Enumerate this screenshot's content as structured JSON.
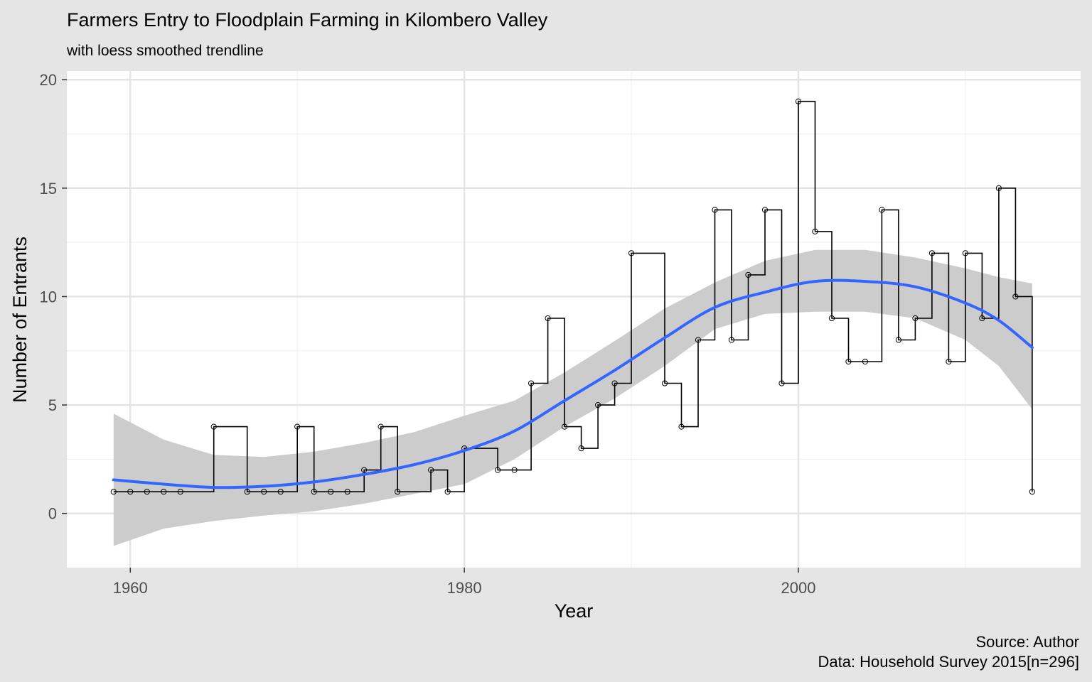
{
  "chart_data": {
    "type": "line",
    "title": "Farmers Entry to Floodplain Farming in Kilombero Valley",
    "subtitle": "with loess smoothed trendline",
    "xlabel": "Year",
    "ylabel": "Number of Entrants",
    "caption": [
      "Source: Author",
      "Data: Household Survey 2015[n=296]"
    ],
    "xlim": [
      1956.2,
      2016.9
    ],
    "ylim": [
      -2.5,
      20.4
    ],
    "x_ticks": [
      1960,
      1980,
      2000
    ],
    "y_ticks": [
      0,
      5,
      10,
      15,
      20
    ],
    "grid": true,
    "series": [
      {
        "style": "step-with-points",
        "color": "#000000",
        "points": [
          [
            1959,
            1
          ],
          [
            1960,
            1
          ],
          [
            1961,
            1
          ],
          [
            1962,
            1
          ],
          [
            1963,
            1
          ],
          [
            1965,
            4
          ],
          [
            1967,
            1
          ],
          [
            1968,
            1
          ],
          [
            1969,
            1
          ],
          [
            1970,
            4
          ],
          [
            1971,
            1
          ],
          [
            1972,
            1
          ],
          [
            1973,
            1
          ],
          [
            1974,
            2
          ],
          [
            1975,
            4
          ],
          [
            1976,
            1
          ],
          [
            1978,
            2
          ],
          [
            1979,
            1
          ],
          [
            1980,
            3
          ],
          [
            1982,
            2
          ],
          [
            1983,
            2
          ],
          [
            1984,
            6
          ],
          [
            1985,
            9
          ],
          [
            1986,
            4
          ],
          [
            1987,
            3
          ],
          [
            1988,
            5
          ],
          [
            1989,
            6
          ],
          [
            1990,
            12
          ],
          [
            1992,
            6
          ],
          [
            1993,
            4
          ],
          [
            1994,
            8
          ],
          [
            1995,
            14
          ],
          [
            1996,
            8
          ],
          [
            1997,
            11
          ],
          [
            1998,
            14
          ],
          [
            1999,
            6
          ],
          [
            2000,
            19
          ],
          [
            2001,
            13
          ],
          [
            2002,
            9
          ],
          [
            2003,
            7
          ],
          [
            2004,
            7
          ],
          [
            2005,
            14
          ],
          [
            2006,
            8
          ],
          [
            2007,
            9
          ],
          [
            2008,
            12
          ],
          [
            2009,
            7
          ],
          [
            2010,
            12
          ],
          [
            2011,
            9
          ],
          [
            2012,
            15
          ],
          [
            2013,
            10
          ],
          [
            2014,
            1
          ]
        ]
      },
      {
        "style": "loess",
        "color": "#3366ff",
        "band_color": "#cccccc",
        "x": [
          1959,
          1962,
          1965,
          1968,
          1971,
          1974,
          1977,
          1980,
          1983,
          1986,
          1989,
          1992,
          1995,
          1998,
          2001,
          2004,
          2007,
          2010,
          2012,
          2014
        ],
        "fit": [
          1.55,
          1.35,
          1.2,
          1.25,
          1.45,
          1.8,
          2.25,
          2.9,
          3.8,
          5.2,
          6.6,
          8.1,
          9.5,
          10.2,
          10.7,
          10.7,
          10.45,
          9.7,
          8.9,
          7.65
        ],
        "lower": [
          -1.5,
          -0.7,
          -0.35,
          -0.1,
          0.1,
          0.45,
          0.9,
          1.35,
          2.5,
          4.0,
          5.3,
          6.8,
          8.5,
          9.2,
          9.3,
          9.3,
          9.0,
          8.0,
          6.8,
          4.8
        ],
        "upper": [
          4.6,
          3.4,
          2.7,
          2.6,
          2.85,
          3.25,
          3.75,
          4.5,
          5.2,
          6.5,
          7.95,
          9.45,
          10.65,
          11.65,
          12.15,
          12.15,
          11.8,
          11.3,
          10.9,
          10.6
        ]
      }
    ]
  }
}
